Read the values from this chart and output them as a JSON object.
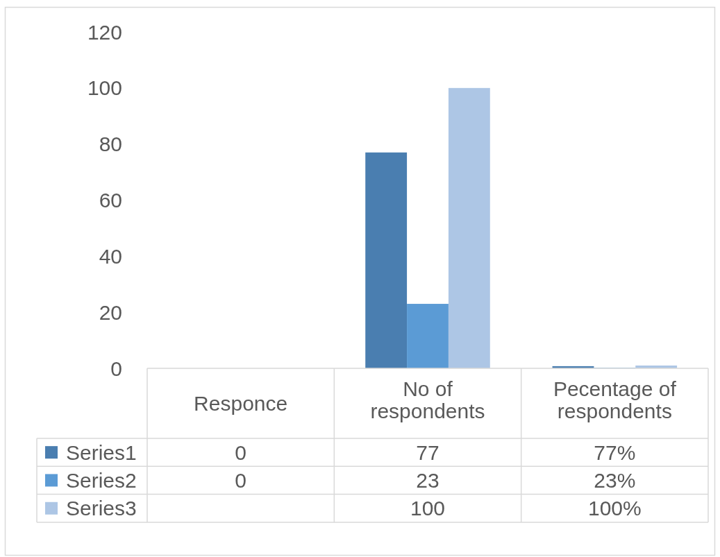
{
  "chart_data": {
    "type": "bar",
    "categories": [
      "Responce",
      "No of respondents",
      "Pecentage of respondents"
    ],
    "series": [
      {
        "name": "Series1",
        "color": "#4a7eb0",
        "values": [
          0,
          77,
          0.77
        ],
        "value_labels": [
          "0",
          "77",
          "77%"
        ]
      },
      {
        "name": "Series2",
        "color": "#5b9bd5",
        "values": [
          0,
          23,
          0.23
        ],
        "value_labels": [
          "0",
          "23",
          "23%"
        ]
      },
      {
        "name": "Series3",
        "color": "#adc6e5",
        "values": [
          null,
          100,
          1
        ],
        "value_labels": [
          null,
          "100",
          "100%"
        ]
      }
    ],
    "ylim": [
      0,
      120
    ],
    "yticks": [
      0,
      20,
      40,
      60,
      80,
      100,
      120
    ],
    "grid": false,
    "legend": "bottom"
  }
}
